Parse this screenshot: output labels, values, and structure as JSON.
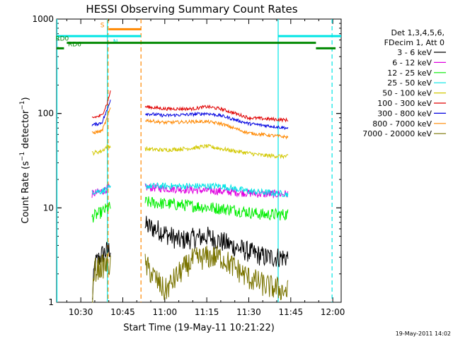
{
  "chart_data": {
    "type": "line",
    "title": "HESSI Observing Summary Count Rates",
    "xlabel": "Start Time (19-May-11 10:21:22)",
    "ylabel": "Count Rate (s⁻¹ detector⁻¹)",
    "ylabel_main": "Count Rate (s",
    "ylabel_sup1": "−1",
    "ylabel_mid": " detector",
    "ylabel_sup2": "−1",
    "ylabel_end": ")",
    "x_axis": {
      "type": "time",
      "range": [
        "10:21:22",
        "12:03:00"
      ],
      "ticks": [
        "10:30",
        "10:45",
        "11:00",
        "11:15",
        "11:30",
        "11:45",
        "12:00"
      ]
    },
    "y_axis": {
      "type": "log",
      "range": [
        1,
        1000
      ],
      "ticks": [
        "1",
        "10",
        "100",
        "1000"
      ]
    },
    "footer_date": "19-May-2011 14:02",
    "legend": {
      "placement": "right",
      "header": [
        "Det 1,3,4,5,6,",
        "FDecim 1, Att 0"
      ],
      "entries": [
        {
          "label": "3 - 6 keV",
          "color": "#000000"
        },
        {
          "label": "6 - 12 keV",
          "color": "#e000e0"
        },
        {
          "label": "12 - 25 keV",
          "color": "#00ee00"
        },
        {
          "label": "25 - 50 keV",
          "color": "#00e5e5"
        },
        {
          "label": "50 - 100 keV",
          "color": "#d2c800"
        },
        {
          "label": "100 - 300 keV",
          "color": "#e00000"
        },
        {
          "label": "300 - 800 keV",
          "color": "#0000e0"
        },
        {
          "label": "800 - 7000 keV",
          "color": "#ff8800"
        },
        {
          "label": "7000 - 20000 keV",
          "color": "#7a7400"
        }
      ]
    },
    "flags": [
      {
        "label": "S",
        "color": "#ff8800",
        "level": 780,
        "segments": [
          [
            "10:40:00",
            "10:51:30"
          ]
        ]
      },
      {
        "label": "N",
        "color": "#00e5e5",
        "level": 660,
        "segments": [
          [
            "10:21:22",
            "10:40:00"
          ],
          [
            "10:40:00",
            "10:51:30"
          ],
          [
            "11:40:30",
            "12:03:00"
          ]
        ]
      },
      {
        "label": "RD0",
        "color": "#008800",
        "level": 560,
        "segments": [
          [
            "10:25:00",
            "11:54:00"
          ]
        ]
      },
      {
        "label": "RD6",
        "color": "#008800",
        "level": 490,
        "segments": [
          [
            "10:21:22",
            "10:24:00"
          ],
          [
            "11:54:00",
            "12:01:00"
          ]
        ]
      }
    ],
    "vertical_lines": [
      {
        "time": "10:21:30",
        "color": "#00e5e5",
        "style": "solid"
      },
      {
        "time": "10:39:30",
        "color": "#00e5e5",
        "style": "solid"
      },
      {
        "time": "10:39:45",
        "color": "#ff8800",
        "style": "dashed"
      },
      {
        "time": "10:51:30",
        "color": "#ff8800",
        "style": "dashed"
      },
      {
        "time": "11:40:30",
        "color": "#00e5e5",
        "style": "solid"
      },
      {
        "time": "11:59:45",
        "color": "#00e5e5",
        "style": "dashed"
      }
    ],
    "series": [
      {
        "name": "3 - 6 keV",
        "color": "#000000",
        "noise": 0.26,
        "points": [
          [
            "10:34:00",
            1.0
          ],
          [
            "10:35:00",
            2.5
          ],
          [
            "10:37:30",
            3.2
          ],
          [
            "10:39:30",
            3.5
          ],
          [
            "10:53:00",
            6.5
          ],
          [
            "10:58:00",
            5.8
          ],
          [
            "11:05:00",
            4.5
          ],
          [
            "11:15:00",
            5.0
          ],
          [
            "11:22:00",
            4.2
          ],
          [
            "11:30:00",
            3.4
          ],
          [
            "11:36:00",
            3.0
          ],
          [
            "11:44:00",
            3.0
          ]
        ]
      },
      {
        "name": "6 - 12 keV",
        "color": "#e000e0",
        "noise": 0.1,
        "points": [
          [
            "10:34:00",
            14.0
          ],
          [
            "10:37:30",
            15.0
          ],
          [
            "10:39:30",
            16.0
          ],
          [
            "10:53:00",
            16.5
          ],
          [
            "11:10:00",
            15.5
          ],
          [
            "11:20:00",
            15.0
          ],
          [
            "11:35:00",
            14.0
          ],
          [
            "11:44:00",
            14.0
          ]
        ]
      },
      {
        "name": "12 - 25 keV",
        "color": "#00ee00",
        "noise": 0.15,
        "points": [
          [
            "10:34:00",
            8.0
          ],
          [
            "10:37:30",
            9.0
          ],
          [
            "10:39:30",
            10.0
          ],
          [
            "10:53:00",
            11.5
          ],
          [
            "11:10:00",
            10.5
          ],
          [
            "11:25:00",
            9.5
          ],
          [
            "11:35:00",
            8.5
          ],
          [
            "11:44:00",
            8.5
          ]
        ]
      },
      {
        "name": "25 - 50 keV",
        "color": "#00e5e5",
        "noise": 0.08,
        "points": [
          [
            "10:34:00",
            15.0
          ],
          [
            "10:37:30",
            15.0
          ],
          [
            "10:39:30",
            16.0
          ],
          [
            "10:53:00",
            17.0
          ],
          [
            "11:10:00",
            17.0
          ],
          [
            "11:20:00",
            17.0
          ],
          [
            "11:30:00",
            15.0
          ],
          [
            "11:44:00",
            14.0
          ]
        ]
      },
      {
        "name": "50 - 100 keV",
        "color": "#d2c800",
        "noise": 0.05,
        "points": [
          [
            "10:34:00",
            38.0
          ],
          [
            "10:37:30",
            40.0
          ],
          [
            "10:39:30",
            45.0
          ],
          [
            "10:53:00",
            42.0
          ],
          [
            "11:00:00",
            41.0
          ],
          [
            "11:10:00",
            43.0
          ],
          [
            "11:15:00",
            45.0
          ],
          [
            "11:25:00",
            40.0
          ],
          [
            "11:35:00",
            36.0
          ],
          [
            "11:44:00",
            35.0
          ]
        ]
      },
      {
        "name": "100 - 300 keV",
        "color": "#e00000",
        "noise": 0.04,
        "points": [
          [
            "10:34:00",
            90.0
          ],
          [
            "10:37:30",
            95.0
          ],
          [
            "10:39:30",
            130.0
          ],
          [
            "10:40:30",
            170.0
          ],
          [
            "10:53:00",
            118.0
          ],
          [
            "11:00:00",
            112.0
          ],
          [
            "11:10:00",
            112.0
          ],
          [
            "11:15:00",
            118.0
          ],
          [
            "11:20:00",
            112.0
          ],
          [
            "11:30:00",
            90.0
          ],
          [
            "11:44:00",
            85.0
          ]
        ]
      },
      {
        "name": "300 - 800 keV",
        "color": "#0000e0",
        "noise": 0.04,
        "points": [
          [
            "10:34:00",
            75.0
          ],
          [
            "10:37:30",
            80.0
          ],
          [
            "10:39:30",
            110.0
          ],
          [
            "10:40:30",
            140.0
          ],
          [
            "10:53:00",
            100.0
          ],
          [
            "11:00:00",
            95.0
          ],
          [
            "11:10:00",
            98.0
          ],
          [
            "11:15:00",
            100.0
          ],
          [
            "11:20:00",
            95.0
          ],
          [
            "11:30:00",
            78.0
          ],
          [
            "11:44:00",
            70.0
          ]
        ]
      },
      {
        "name": "800 - 7000 keV",
        "color": "#ff8800",
        "noise": 0.04,
        "points": [
          [
            "10:34:00",
            62.0
          ],
          [
            "10:37:30",
            65.0
          ],
          [
            "10:39:30",
            90.0
          ],
          [
            "10:40:30",
            115.0
          ],
          [
            "10:53:00",
            85.0
          ],
          [
            "11:00:00",
            80.0
          ],
          [
            "11:10:00",
            82.0
          ],
          [
            "11:15:00",
            82.0
          ],
          [
            "11:20:00",
            78.0
          ],
          [
            "11:30:00",
            62.0
          ],
          [
            "11:44:00",
            56.0
          ]
        ]
      },
      {
        "name": "7000 - 20000 keV",
        "color": "#7a7400",
        "noise": 0.3,
        "points": [
          [
            "10:34:00",
            1.0
          ],
          [
            "10:35:00",
            2.2
          ],
          [
            "10:39:30",
            2.5
          ],
          [
            "10:53:00",
            2.5
          ],
          [
            "11:00:00",
            1.3
          ],
          [
            "11:05:00",
            2.0
          ],
          [
            "11:10:00",
            2.8
          ],
          [
            "11:15:00",
            3.0
          ],
          [
            "11:20:00",
            3.0
          ],
          [
            "11:30:00",
            1.8
          ],
          [
            "11:36:00",
            1.5
          ],
          [
            "11:44:00",
            1.3
          ]
        ]
      }
    ]
  }
}
